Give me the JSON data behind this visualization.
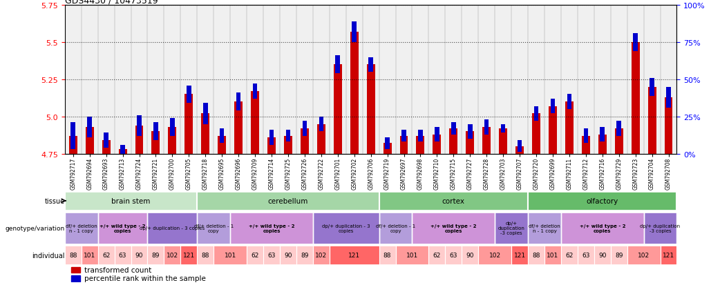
{
  "title": "GDS4430 / 10473519",
  "samples": [
    "GSM792717",
    "GSM792694",
    "GSM792693",
    "GSM792713",
    "GSM792724",
    "GSM792721",
    "GSM792700",
    "GSM792705",
    "GSM792718",
    "GSM792695",
    "GSM792696",
    "GSM792709",
    "GSM792714",
    "GSM792725",
    "GSM792726",
    "GSM792722",
    "GSM792701",
    "GSM792702",
    "GSM792706",
    "GSM792719",
    "GSM792697",
    "GSM792698",
    "GSM792710",
    "GSM792715",
    "GSM792727",
    "GSM792728",
    "GSM792703",
    "GSM792707",
    "GSM792720",
    "GSM792699",
    "GSM792711",
    "GSM792712",
    "GSM792716",
    "GSM792729",
    "GSM792723",
    "GSM792704",
    "GSM792708"
  ],
  "red_values": [
    4.87,
    4.93,
    4.84,
    4.78,
    4.94,
    4.9,
    4.93,
    5.15,
    5.02,
    4.87,
    5.1,
    5.17,
    4.86,
    4.87,
    4.92,
    4.95,
    5.35,
    5.57,
    5.35,
    4.82,
    4.87,
    4.87,
    4.88,
    4.92,
    4.9,
    4.93,
    4.92,
    4.8,
    5.02,
    5.07,
    5.1,
    4.87,
    4.88,
    4.92,
    5.5,
    5.2,
    5.13
  ],
  "blue_values": [
    0.18,
    0.14,
    0.1,
    0.06,
    0.14,
    0.12,
    0.12,
    0.12,
    0.14,
    0.1,
    0.12,
    0.1,
    0.1,
    0.08,
    0.1,
    0.1,
    0.12,
    0.14,
    0.1,
    0.08,
    0.08,
    0.08,
    0.1,
    0.08,
    0.1,
    0.1,
    0.06,
    0.08,
    0.1,
    0.1,
    0.1,
    0.1,
    0.1,
    0.1,
    0.12,
    0.12,
    0.14
  ],
  "ylim_left": [
    4.75,
    5.75
  ],
  "ylim_right": [
    0,
    100
  ],
  "yticks_left": [
    4.75,
    5.0,
    5.25,
    5.5,
    5.75
  ],
  "yticks_right": [
    0,
    25,
    50,
    75,
    100
  ],
  "dotted_lines": [
    5.0,
    5.25,
    5.5,
    5.75
  ],
  "tissues": [
    {
      "label": "brain stem",
      "start": 0,
      "end": 8,
      "color": "#c8e6c9"
    },
    {
      "label": "cerebellum",
      "start": 8,
      "end": 19,
      "color": "#a5d6a7"
    },
    {
      "label": "cortex",
      "start": 19,
      "end": 28,
      "color": "#81c784"
    },
    {
      "label": "olfactory",
      "start": 28,
      "end": 37,
      "color": "#66bb6a"
    }
  ],
  "genotypes": [
    {
      "label": "df/+ deletion\nn - 1 copy",
      "start": 0,
      "end": 2,
      "color": "#b39ddb"
    },
    {
      "label": "+/+ wild type - 2\ncopies",
      "start": 2,
      "end": 5,
      "color": "#ce93d8"
    },
    {
      "label": "dp/+ duplication - 3 copies",
      "start": 5,
      "end": 8,
      "color": "#9575cd"
    },
    {
      "label": "df/+ deletion - 1\ncopy",
      "start": 8,
      "end": 10,
      "color": "#b39ddb"
    },
    {
      "label": "+/+ wild type - 2\ncopies",
      "start": 10,
      "end": 15,
      "color": "#ce93d8"
    },
    {
      "label": "dp/+ duplication - 3\ncopies",
      "start": 15,
      "end": 19,
      "color": "#9575cd"
    },
    {
      "label": "df/+ deletion - 1\ncopy",
      "start": 19,
      "end": 21,
      "color": "#b39ddb"
    },
    {
      "label": "+/+ wild type - 2\ncopies",
      "start": 21,
      "end": 26,
      "color": "#ce93d8"
    },
    {
      "label": "dp/+\nduplication\n-3 copies",
      "start": 26,
      "end": 28,
      "color": "#9575cd"
    },
    {
      "label": "df/+ deletion\nn - 1 copy",
      "start": 28,
      "end": 30,
      "color": "#b39ddb"
    },
    {
      "label": "+/+ wild type - 2\ncopies",
      "start": 30,
      "end": 35,
      "color": "#ce93d8"
    },
    {
      "label": "dp/+ duplication\n-3 copies",
      "start": 35,
      "end": 37,
      "color": "#9575cd"
    }
  ],
  "individuals": [
    {
      "label": "88",
      "start": 0,
      "end": 1,
      "color": "#ffcccc"
    },
    {
      "label": "101",
      "start": 1,
      "end": 2,
      "color": "#ff9999"
    },
    {
      "label": "62",
      "start": 2,
      "end": 3,
      "color": "#ffcccc"
    },
    {
      "label": "63",
      "start": 3,
      "end": 4,
      "color": "#ffcccc"
    },
    {
      "label": "90",
      "start": 4,
      "end": 5,
      "color": "#ffcccc"
    },
    {
      "label": "89",
      "start": 5,
      "end": 6,
      "color": "#ffcccc"
    },
    {
      "label": "102",
      "start": 6,
      "end": 7,
      "color": "#ff9999"
    },
    {
      "label": "121",
      "start": 7,
      "end": 8,
      "color": "#ff6666"
    },
    {
      "label": "88",
      "start": 8,
      "end": 9,
      "color": "#ffcccc"
    },
    {
      "label": "101",
      "start": 9,
      "end": 11,
      "color": "#ff9999"
    },
    {
      "label": "62",
      "start": 11,
      "end": 12,
      "color": "#ffcccc"
    },
    {
      "label": "63",
      "start": 12,
      "end": 13,
      "color": "#ffcccc"
    },
    {
      "label": "90",
      "start": 13,
      "end": 14,
      "color": "#ffcccc"
    },
    {
      "label": "89",
      "start": 14,
      "end": 15,
      "color": "#ffcccc"
    },
    {
      "label": "102",
      "start": 15,
      "end": 16,
      "color": "#ff9999"
    },
    {
      "label": "121",
      "start": 16,
      "end": 19,
      "color": "#ff6666"
    },
    {
      "label": "88",
      "start": 19,
      "end": 20,
      "color": "#ffcccc"
    },
    {
      "label": "101",
      "start": 20,
      "end": 22,
      "color": "#ff9999"
    },
    {
      "label": "62",
      "start": 22,
      "end": 23,
      "color": "#ffcccc"
    },
    {
      "label": "63",
      "start": 23,
      "end": 24,
      "color": "#ffcccc"
    },
    {
      "label": "90",
      "start": 24,
      "end": 25,
      "color": "#ffcccc"
    },
    {
      "label": "102",
      "start": 25,
      "end": 27,
      "color": "#ff9999"
    },
    {
      "label": "121",
      "start": 27,
      "end": 28,
      "color": "#ff6666"
    },
    {
      "label": "88",
      "start": 28,
      "end": 29,
      "color": "#ffcccc"
    },
    {
      "label": "101",
      "start": 29,
      "end": 30,
      "color": "#ff9999"
    },
    {
      "label": "62",
      "start": 30,
      "end": 31,
      "color": "#ffcccc"
    },
    {
      "label": "63",
      "start": 31,
      "end": 32,
      "color": "#ffcccc"
    },
    {
      "label": "90",
      "start": 32,
      "end": 33,
      "color": "#ffcccc"
    },
    {
      "label": "89",
      "start": 33,
      "end": 34,
      "color": "#ffcccc"
    },
    {
      "label": "102",
      "start": 34,
      "end": 36,
      "color": "#ff9999"
    },
    {
      "label": "121",
      "start": 36,
      "end": 37,
      "color": "#ff6666"
    }
  ],
  "bar_color_red": "#cc0000",
  "bar_color_blue": "#0000cc",
  "bar_width": 0.5,
  "base_value": 4.75
}
